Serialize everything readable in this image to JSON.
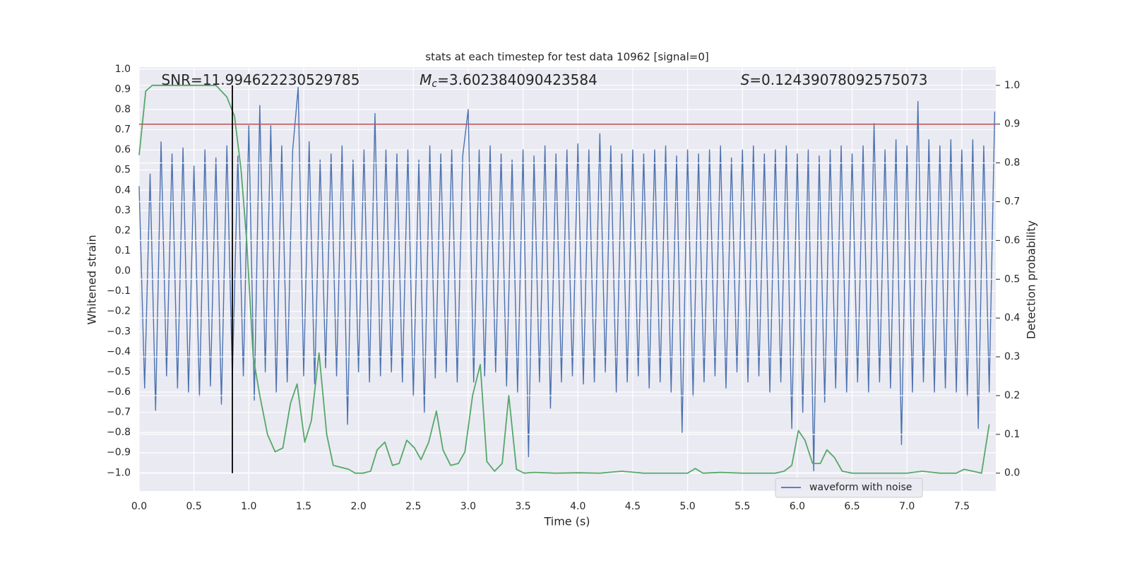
{
  "chart_data": {
    "type": "line",
    "title": "stats at each timestep for test data 10962 [signal=0]",
    "xlabel": "Time (s)",
    "ylabel": "Whitened strain",
    "y2label": "Detection probability",
    "annotations": [
      {
        "text": "SNR=11.994622230529785"
      },
      {
        "symbol": "M",
        "subscript": "c",
        "text": "=3.602384090423584"
      },
      {
        "symbol": "S",
        "text": "=0.12439078092575073"
      }
    ],
    "xlim": [
      0,
      7.81
    ],
    "ylim": [
      -1.09,
      1.01
    ],
    "y2lim": [
      -0.046,
      1.047
    ],
    "xticks": [
      {
        "value": 0,
        "label": "0.0"
      },
      0.5,
      {
        "value": 1,
        "label": "1.0"
      },
      1.5,
      {
        "value": 2,
        "label": "2.0"
      },
      2.5,
      {
        "value": 3,
        "label": "3.0"
      },
      3.5,
      {
        "value": 4,
        "label": "4.0"
      },
      4.5,
      {
        "value": 5,
        "label": "5.0"
      },
      5.5,
      {
        "value": 6,
        "label": "6.0"
      },
      6.5,
      {
        "value": 7,
        "label": "7.0"
      },
      7.5
    ],
    "yticks": [
      {
        "value": 1,
        "label": "1.0"
      },
      0.9,
      0.8,
      0.7,
      0.6,
      0.5,
      0.4,
      0.3,
      0.2,
      0.1,
      {
        "value": 0,
        "label": "0.0"
      },
      {
        "value": -0.1,
        "label": "−0.1"
      },
      {
        "value": -0.2,
        "label": "−0.2"
      },
      {
        "value": -0.3,
        "label": "−0.3"
      },
      {
        "value": -0.4,
        "label": "−0.4"
      },
      {
        "value": -0.5,
        "label": "−0.5"
      },
      {
        "value": -0.6,
        "label": "−0.6"
      },
      {
        "value": -0.7,
        "label": "−0.7"
      },
      {
        "value": -0.8,
        "label": "−0.8"
      },
      {
        "value": -0.9,
        "label": "−0.9"
      },
      {
        "value": -1,
        "label": "−1.0"
      }
    ],
    "y2ticks": [
      {
        "value": 0,
        "label": "0.0"
      },
      0.1,
      0.2,
      0.3,
      0.4,
      0.5,
      0.6,
      0.7,
      0.8,
      0.9,
      {
        "value": 1,
        "label": "1.0"
      }
    ],
    "grid": true,
    "legend": "lower right",
    "threshold_line": {
      "value": 0.9,
      "axis": "y2",
      "color": "#c44e52"
    },
    "marker_line": {
      "x": 0.85,
      "y2range": [
        0,
        1
      ],
      "color": "#000000"
    },
    "series": [
      {
        "name": "waveform with noise",
        "color": "#4c72b0",
        "x": [
          0,
          0.05,
          0.1,
          0.15,
          0.2,
          0.25,
          0.3,
          0.35,
          0.4,
          0.45,
          0.5,
          0.55,
          0.6,
          0.65,
          0.7,
          0.75,
          0.8,
          0.85,
          0.9,
          0.95,
          1.0,
          1.05,
          1.1,
          1.15,
          1.2,
          1.25,
          1.3,
          1.35,
          1.4,
          1.45,
          1.5,
          1.55,
          1.6,
          1.65,
          1.7,
          1.75,
          1.8,
          1.85,
          1.9,
          1.95,
          2.0,
          2.05,
          2.1,
          2.15,
          2.2,
          2.25,
          2.3,
          2.35,
          2.4,
          2.45,
          2.5,
          2.55,
          2.6,
          2.65,
          2.7,
          2.75,
          2.8,
          2.85,
          2.9,
          2.95,
          3.0,
          3.05,
          3.1,
          3.15,
          3.2,
          3.25,
          3.3,
          3.35,
          3.4,
          3.45,
          3.5,
          3.55,
          3.6,
          3.65,
          3.7,
          3.75,
          3.8,
          3.85,
          3.9,
          3.95,
          4.0,
          4.05,
          4.1,
          4.15,
          4.2,
          4.25,
          4.3,
          4.35,
          4.4,
          4.45,
          4.5,
          4.55,
          4.6,
          4.65,
          4.7,
          4.75,
          4.8,
          4.85,
          4.9,
          4.95,
          5.0,
          5.05,
          5.1,
          5.15,
          5.2,
          5.25,
          5.3,
          5.35,
          5.4,
          5.45,
          5.5,
          5.55,
          5.6,
          5.65,
          5.7,
          5.75,
          5.8,
          5.85,
          5.9,
          5.95,
          6.0,
          6.05,
          6.1,
          6.15,
          6.2,
          6.25,
          6.3,
          6.35,
          6.4,
          6.45,
          6.5,
          6.55,
          6.6,
          6.65,
          6.7,
          6.75,
          6.8,
          6.85,
          6.9,
          6.95,
          7.0,
          7.05,
          7.1,
          7.15,
          7.2,
          7.25,
          7.3,
          7.35,
          7.4,
          7.45,
          7.5,
          7.55,
          7.6,
          7.65,
          7.7,
          7.75,
          7.8
        ],
        "values": [
          0.42,
          -0.58,
          0.48,
          -0.69,
          0.64,
          -0.52,
          0.58,
          -0.58,
          0.61,
          -0.6,
          0.52,
          -0.62,
          0.6,
          -0.57,
          0.56,
          -0.66,
          0.62,
          -0.53,
          0.57,
          -0.52,
          0.72,
          -0.64,
          0.82,
          -0.5,
          0.72,
          -0.6,
          0.62,
          -0.55,
          0.6,
          0.91,
          -0.52,
          0.64,
          -0.56,
          0.55,
          -0.48,
          0.58,
          -0.52,
          0.62,
          -0.76,
          0.55,
          -0.5,
          0.6,
          -0.55,
          0.78,
          -0.52,
          0.6,
          -0.5,
          0.58,
          -0.55,
          0.6,
          -0.62,
          0.55,
          -0.7,
          0.62,
          -0.53,
          0.58,
          -0.5,
          0.6,
          -0.55,
          0.57,
          0.8,
          -0.55,
          0.6,
          -0.52,
          0.62,
          -0.5,
          0.58,
          -0.57,
          0.55,
          -0.6,
          0.6,
          -0.92,
          0.57,
          -0.55,
          0.62,
          -0.68,
          0.58,
          -0.55,
          0.6,
          -0.52,
          0.63,
          -0.56,
          0.6,
          -0.55,
          0.68,
          -0.5,
          0.62,
          -0.6,
          0.58,
          -0.55,
          0.6,
          -0.52,
          0.58,
          -0.58,
          0.6,
          -0.55,
          0.62,
          -0.6,
          0.57,
          -0.8,
          0.6,
          -0.62,
          0.58,
          -0.55,
          0.6,
          -0.52,
          0.62,
          -0.58,
          0.56,
          -0.5,
          0.6,
          -0.55,
          0.62,
          -0.52,
          0.58,
          -0.6,
          0.6,
          -0.55,
          0.62,
          -0.78,
          0.58,
          -0.7,
          0.6,
          -0.99,
          0.57,
          -0.65,
          0.6,
          -0.58,
          0.62,
          -0.6,
          0.58,
          -0.55,
          0.62,
          -0.6,
          0.73,
          -0.55,
          0.6,
          -0.58,
          0.65,
          -0.86,
          0.62,
          -0.6,
          0.84,
          -0.55,
          0.65,
          -0.6,
          0.62,
          -0.58,
          0.65,
          -0.6,
          0.6,
          -0.62,
          0.65,
          -0.78,
          0.62,
          -0.6,
          0.79
        ]
      },
      {
        "color": "#55a868",
        "axis": "y2",
        "x": [
          0,
          0.06,
          0.12,
          0.2,
          0.7,
          0.8,
          0.87,
          0.93,
          0.98,
          1.04,
          1.1,
          1.17,
          1.24,
          1.31,
          1.38,
          1.44,
          1.51,
          1.57,
          1.64,
          1.71,
          1.77,
          1.84,
          1.91,
          1.97,
          2.04,
          2.11,
          2.17,
          2.24,
          2.31,
          2.37,
          2.44,
          2.51,
          2.57,
          2.64,
          2.71,
          2.77,
          2.84,
          2.91,
          2.97,
          3.04,
          3.11,
          3.17,
          3.24,
          3.31,
          3.37,
          3.44,
          3.51,
          3.6,
          3.8,
          4.0,
          4.2,
          4.4,
          4.6,
          5.0,
          5.07,
          5.14,
          5.3,
          5.5,
          5.8,
          5.88,
          5.95,
          6.01,
          6.07,
          6.14,
          6.21,
          6.27,
          6.34,
          6.41,
          6.5,
          7.0,
          7.14,
          7.3,
          7.45,
          7.52,
          7.6,
          7.68,
          7.75
        ],
        "values": [
          0.82,
          0.985,
          1.0,
          1.0,
          1.0,
          0.97,
          0.92,
          0.78,
          0.6,
          0.3,
          0.2,
          0.1,
          0.055,
          0.065,
          0.18,
          0.23,
          0.08,
          0.135,
          0.31,
          0.1,
          0.02,
          0.015,
          0.01,
          0.0,
          0.0,
          0.005,
          0.06,
          0.08,
          0.02,
          0.025,
          0.085,
          0.065,
          0.035,
          0.08,
          0.16,
          0.06,
          0.02,
          0.025,
          0.055,
          0.2,
          0.28,
          0.03,
          0.005,
          0.025,
          0.2,
          0.01,
          0.0,
          0.002,
          0.0,
          0.001,
          0.0,
          0.005,
          0.0,
          0.0,
          0.012,
          0.0,
          0.002,
          0.0,
          0.0,
          0.005,
          0.02,
          0.11,
          0.085,
          0.025,
          0.025,
          0.06,
          0.04,
          0.005,
          0.0,
          0.0,
          0.005,
          0.0,
          0.0,
          0.01,
          0.005,
          0.0,
          0.126
        ]
      }
    ]
  }
}
